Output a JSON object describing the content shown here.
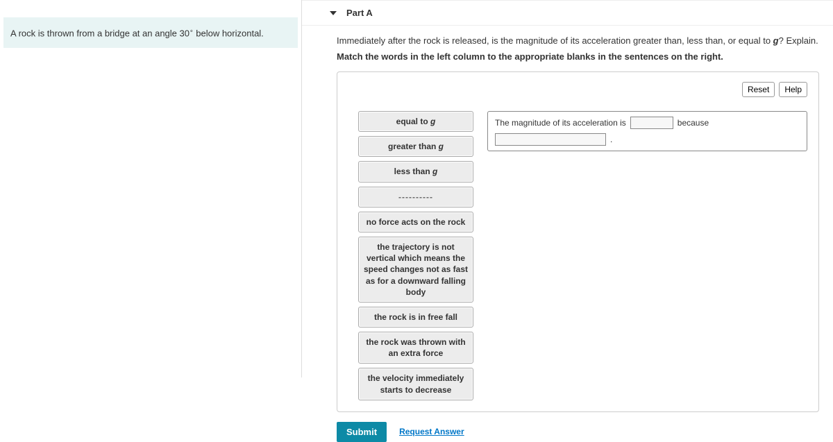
{
  "problem": {
    "text_before": "A rock is thrown from a bridge at an angle 30",
    "degree": "∘",
    "text_after": " below horizontal."
  },
  "part": {
    "label": "Part A",
    "question_before": "Immediately after the rock is released, is the magnitude of its acceleration greater than, less than, or equal to ",
    "question_var": "g",
    "question_after": "? Explain.",
    "instruction": "Match the words in the left column to the appropriate blanks in the sentences on the right."
  },
  "buttons": {
    "reset": "Reset",
    "help": "Help",
    "submit": "Submit",
    "request": "Request Answer"
  },
  "tiles": {
    "t1_pre": "equal to ",
    "t1_var": "g",
    "t2_pre": "greater than ",
    "t2_var": "g",
    "t3_pre": "less than ",
    "t3_var": "g",
    "t4": "----------",
    "t5": "no force acts on the rock",
    "t6": "the trajectory is not vertical which means the speed changes not as fast as for a downward falling body",
    "t7": "the rock is in free fall",
    "t8": "the rock was thrown with an extra force",
    "t9": "the velocity immediately starts to decrease"
  },
  "sentence": {
    "s1": "The magnitude of its acceleration is",
    "s2": "because",
    "s3": "."
  }
}
